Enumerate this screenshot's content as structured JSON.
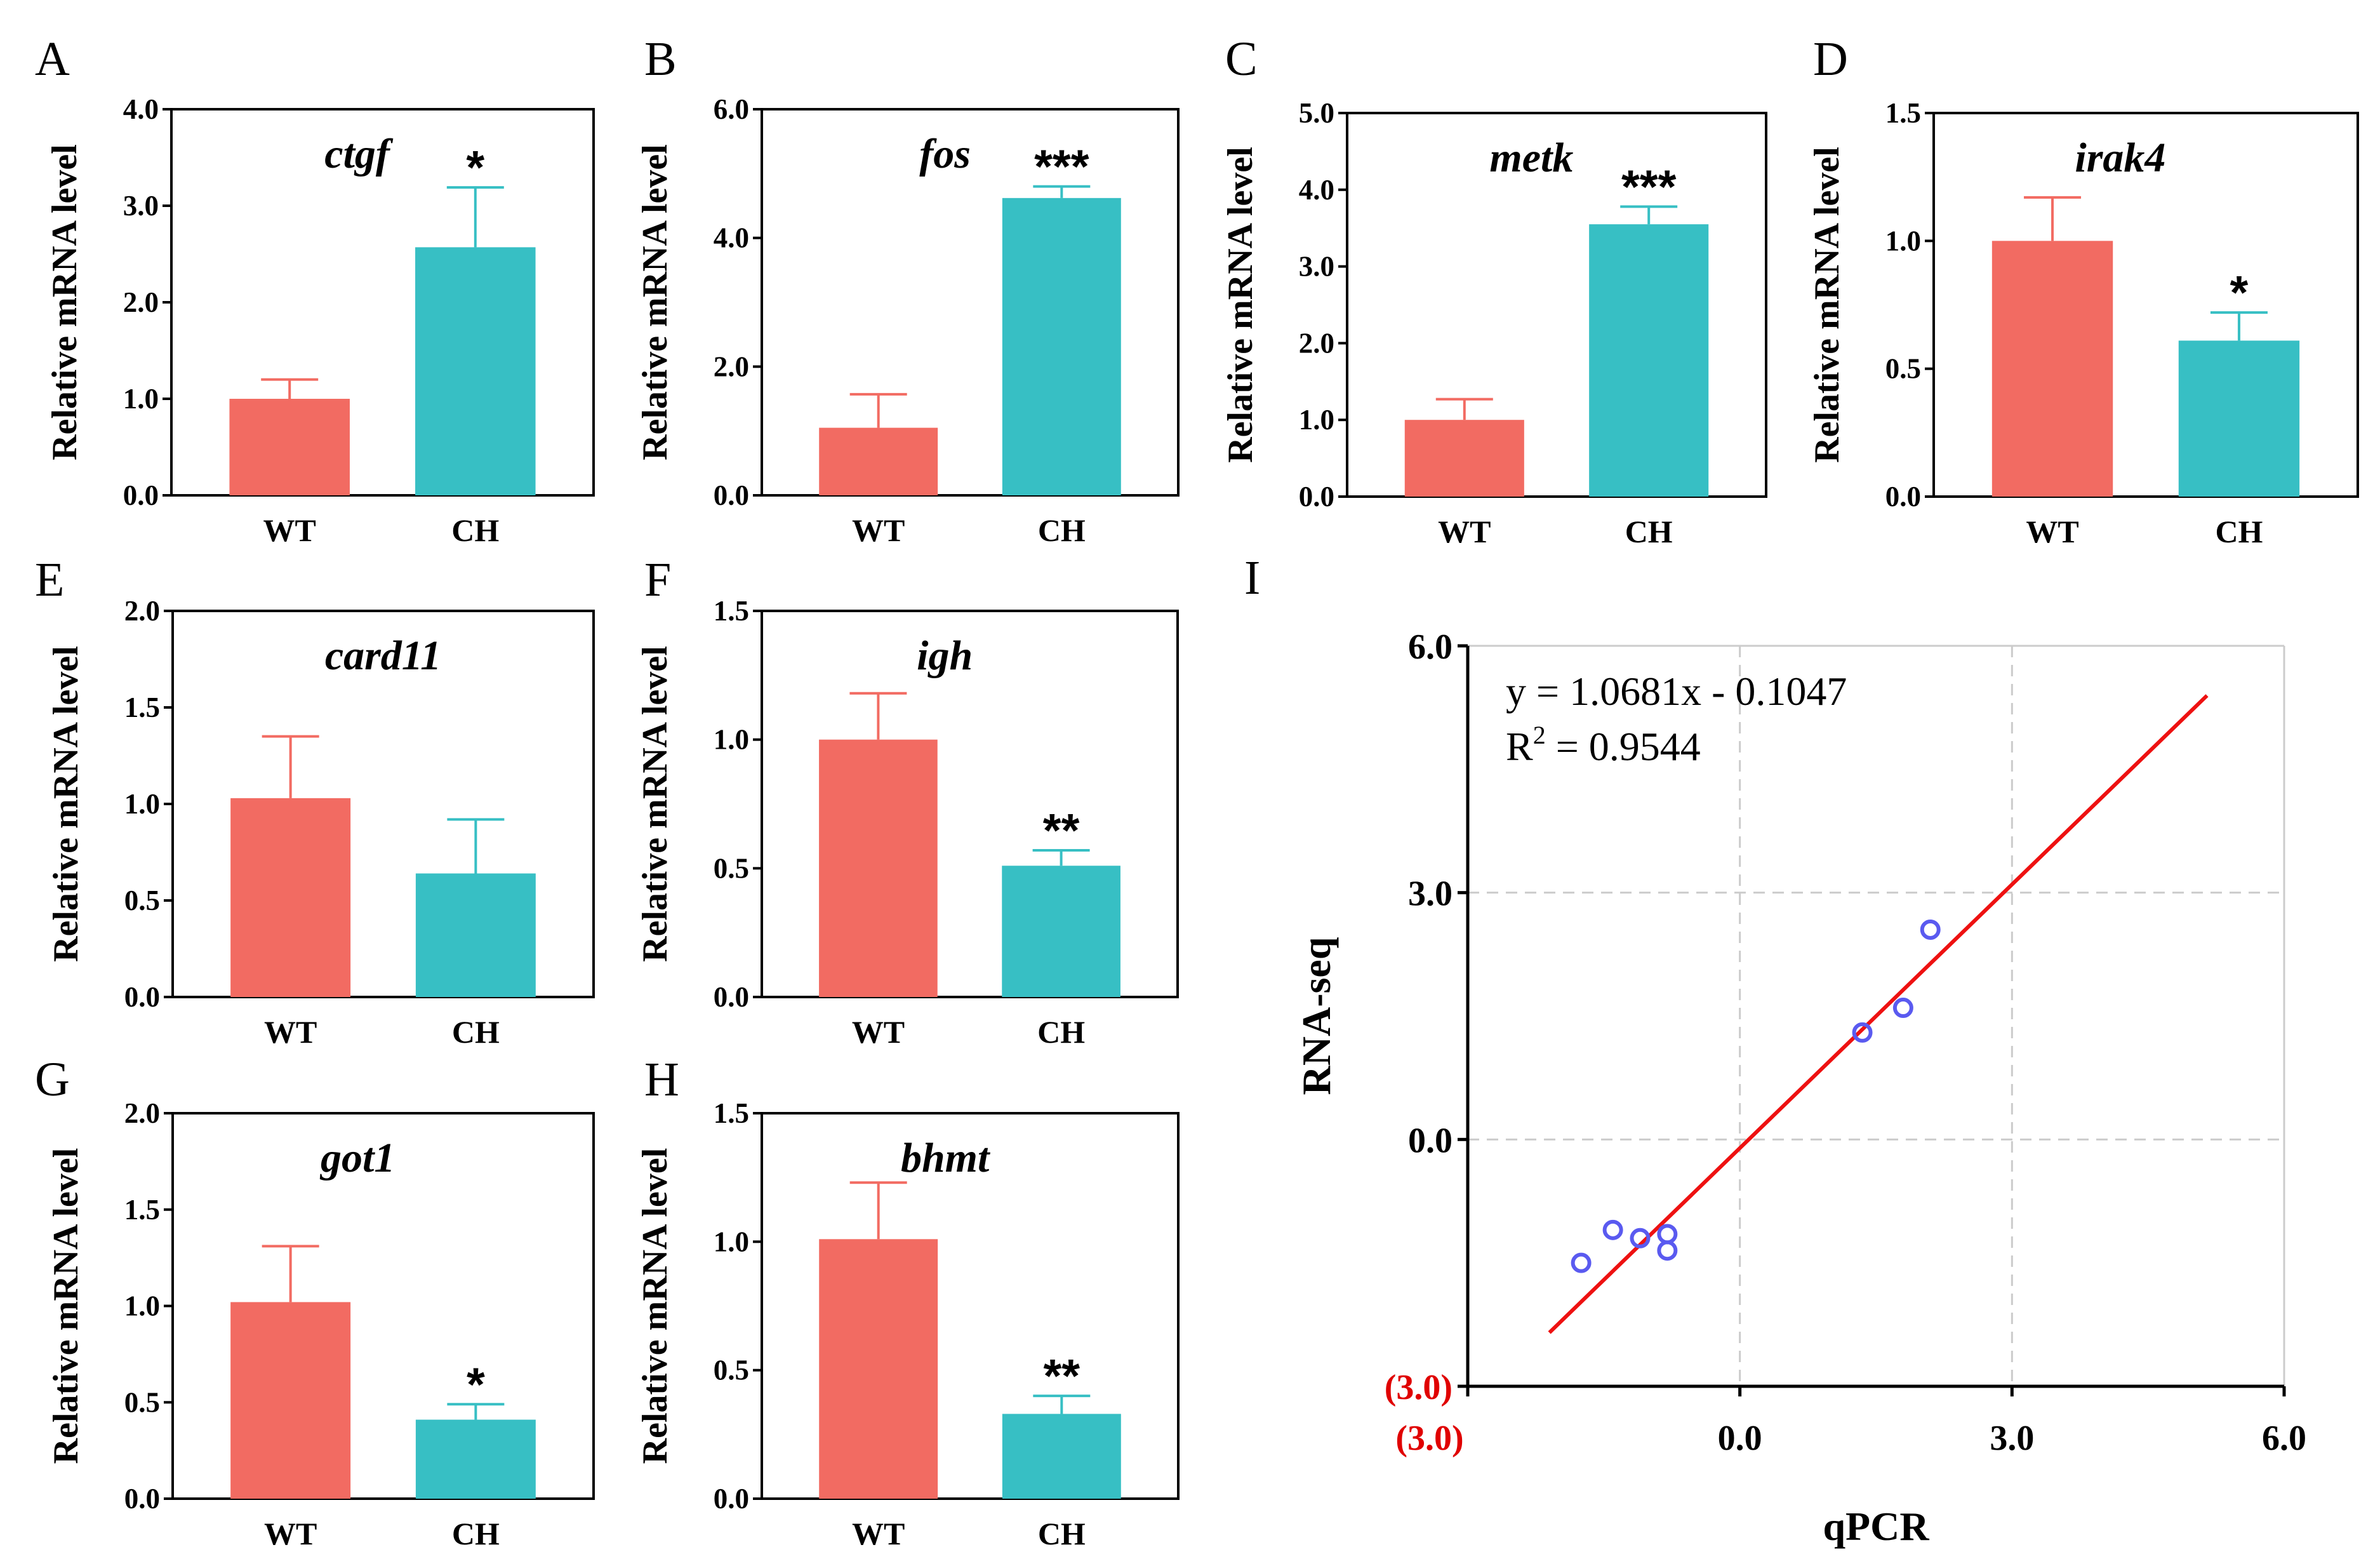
{
  "colors": {
    "wt": "#F26B62",
    "ch": "#37BFC4",
    "fit_line": "#EE1111",
    "points": "#5A5AF0",
    "grid": "#CCCCCC"
  },
  "chart_data": [
    {
      "panel": "A",
      "type": "bar",
      "gene": "ctgf",
      "ylabel": "Relative mRNA level",
      "categories": [
        "WT",
        "CH"
      ],
      "values": [
        1.0,
        2.57
      ],
      "errors": [
        0.2,
        0.62
      ],
      "significance": "*",
      "ylim": [
        0,
        4.0
      ],
      "yticks": [
        "0.0",
        "1.0",
        "2.0",
        "3.0",
        "4.0"
      ]
    },
    {
      "panel": "B",
      "type": "bar",
      "gene": "fos",
      "ylabel": "Relative mRNA level",
      "categories": [
        "WT",
        "CH"
      ],
      "values": [
        1.05,
        4.62
      ],
      "errors": [
        0.52,
        0.18
      ],
      "significance": "***",
      "ylim": [
        0,
        6.0
      ],
      "yticks": [
        "0.0",
        "2.0",
        "4.0",
        "6.0"
      ]
    },
    {
      "panel": "C",
      "type": "bar",
      "gene": "metk",
      "ylabel": "Relative mRNA level",
      "categories": [
        "WT",
        "CH"
      ],
      "values": [
        1.0,
        3.55
      ],
      "errors": [
        0.27,
        0.23
      ],
      "significance": "***",
      "ylim": [
        0,
        5.0
      ],
      "yticks": [
        "0.0",
        "1.0",
        "2.0",
        "3.0",
        "4.0",
        "5.0"
      ]
    },
    {
      "panel": "D",
      "type": "bar",
      "gene": "irak4",
      "ylabel": "Relative mRNA level",
      "categories": [
        "WT",
        "CH"
      ],
      "values": [
        1.0,
        0.61
      ],
      "errors": [
        0.17,
        0.11
      ],
      "significance": "*",
      "ylim": [
        0,
        1.5
      ],
      "yticks": [
        "0.0",
        "0.5",
        "1.0",
        "1.5"
      ]
    },
    {
      "panel": "E",
      "type": "bar",
      "gene": "card11",
      "ylabel": "Relative mRNA level",
      "categories": [
        "WT",
        "CH"
      ],
      "values": [
        1.03,
        0.64
      ],
      "errors": [
        0.32,
        0.28
      ],
      "significance": "",
      "ylim": [
        0,
        2.0
      ],
      "yticks": [
        "0.0",
        "0.5",
        "1.0",
        "1.5",
        "2.0"
      ]
    },
    {
      "panel": "F",
      "type": "bar",
      "gene": "igh",
      "ylabel": "Relative mRNA level",
      "categories": [
        "WT",
        "CH"
      ],
      "values": [
        1.0,
        0.51
      ],
      "errors": [
        0.18,
        0.06
      ],
      "significance": "**",
      "ylim": [
        0,
        1.5
      ],
      "yticks": [
        "0.0",
        "0.5",
        "1.0",
        "1.5"
      ]
    },
    {
      "panel": "G",
      "type": "bar",
      "gene": "got1",
      "ylabel": "Relative mRNA level",
      "categories": [
        "WT",
        "CH"
      ],
      "values": [
        1.02,
        0.41
      ],
      "errors": [
        0.29,
        0.08
      ],
      "significance": "*",
      "ylim": [
        0,
        2.0
      ],
      "yticks": [
        "0.0",
        "0.5",
        "1.0",
        "1.5",
        "2.0"
      ]
    },
    {
      "panel": "H",
      "type": "bar",
      "gene": "bhmt",
      "ylabel": "Relative mRNA level",
      "categories": [
        "WT",
        "CH"
      ],
      "values": [
        1.01,
        0.33
      ],
      "errors": [
        0.22,
        0.07
      ],
      "significance": "**",
      "ylim": [
        0,
        1.5
      ],
      "yticks": [
        "0.0",
        "0.5",
        "1.0",
        "1.5"
      ]
    },
    {
      "panel": "I",
      "type": "scatter",
      "xlabel": "qPCR",
      "ylabel": "RNA-seq",
      "xlim": [
        -3.0,
        6.0
      ],
      "ylim": [
        -3.0,
        6.0
      ],
      "xticks": [
        "(3.0)",
        "0.0",
        "3.0",
        "6.0"
      ],
      "yticks": [
        "(3.0)",
        "0.0",
        "3.0",
        "6.0"
      ],
      "x": [
        -1.75,
        -1.4,
        -1.1,
        -0.8,
        -0.8,
        1.35,
        1.8,
        2.1
      ],
      "y": [
        -1.5,
        -1.1,
        -1.2,
        -1.15,
        -1.35,
        1.3,
        1.6,
        2.55
      ],
      "fit": {
        "slope": 1.0681,
        "intercept": -0.1047,
        "x_range": [
          -2.1,
          5.15
        ]
      },
      "equation": "y = 1.0681x - 0.1047",
      "r2_label": "R",
      "r2_sup": "2",
      "r2_value": " = 0.9544"
    }
  ]
}
